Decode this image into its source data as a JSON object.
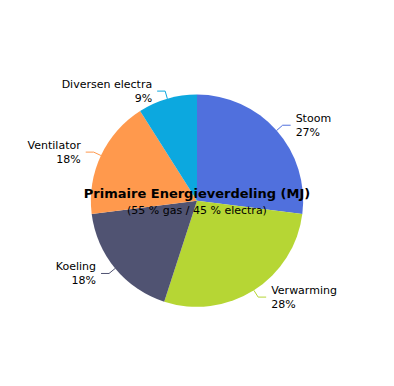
{
  "chart_data": {
    "type": "pie",
    "title": "Primaire Energieverdeling (MJ)",
    "subtitle": "(55 % gas / 45 % electra)",
    "categories": [
      "Stoom",
      "Verwarming",
      "Koeling",
      "Ventilator",
      "Diversen electra"
    ],
    "values": [
      27,
      28,
      18,
      18,
      9
    ],
    "value_labels": [
      "27%",
      "28%",
      "18%",
      "18%",
      "9%"
    ],
    "data_labels": true
  }
}
